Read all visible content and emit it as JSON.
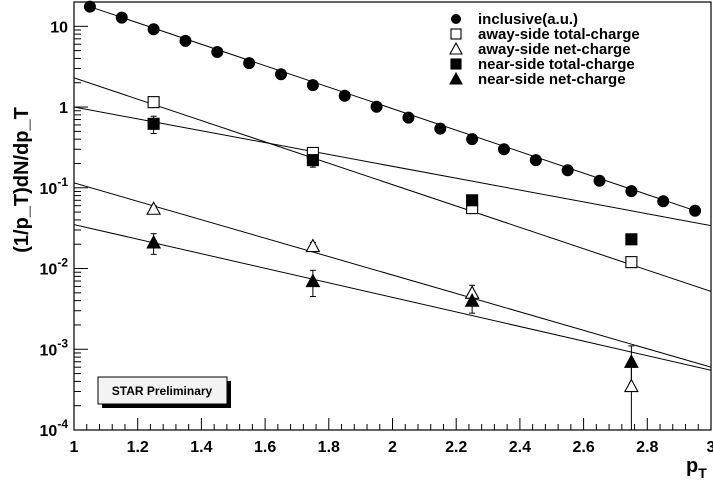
{
  "chart_data": {
    "type": "scatter",
    "xlabel": "p",
    "xlabel_sub": "T",
    "ylabel": "(1/p_T)dN/dp_T",
    "xlim": [
      1,
      3
    ],
    "ylim": [
      0.0001,
      20
    ],
    "y_scale": "log",
    "x_ticks": [
      1,
      1.2,
      1.4,
      1.6,
      1.8,
      2,
      2.2,
      2.4,
      2.6,
      2.8,
      3
    ],
    "x_tick_labels": [
      "1",
      "1.2",
      "1.4",
      "1.6",
      "1.8",
      "2",
      "2.2",
      "2.4",
      "2.6",
      "2.8",
      "3"
    ],
    "y_ticks": [
      0.0001,
      0.001,
      0.01,
      0.1,
      1,
      10
    ],
    "y_tick_labels": [
      {
        "base": "10",
        "exp": "-4"
      },
      {
        "base": "10",
        "exp": "-3"
      },
      {
        "base": "10",
        "exp": "-2"
      },
      {
        "base": "10",
        "exp": "-1"
      },
      {
        "base": "1",
        "exp": ""
      },
      {
        "base": "10",
        "exp": ""
      }
    ],
    "grid": false,
    "legend_position": "top-right",
    "annotation": "STAR Preliminary",
    "series": [
      {
        "name": "inclusive(a.u.)",
        "marker": "filled-circle",
        "x": [
          1.05,
          1.15,
          1.25,
          1.35,
          1.45,
          1.55,
          1.65,
          1.75,
          1.85,
          1.95,
          2.05,
          2.15,
          2.25,
          2.35,
          2.45,
          2.55,
          2.65,
          2.75,
          2.85,
          2.95
        ],
        "y": [
          17.5,
          12.8,
          9.2,
          6.6,
          4.8,
          3.5,
          2.55,
          1.87,
          1.38,
          1.01,
          0.74,
          0.54,
          0.4,
          0.3,
          0.22,
          0.165,
          0.122,
          0.091,
          0.068,
          0.052
        ],
        "fit": [
          [
            1.05,
            17.5
          ],
          [
            2.95,
            0.052
          ]
        ]
      },
      {
        "name": "away-side total-charge",
        "marker": "open-square",
        "x": [
          1.25,
          1.75,
          2.25,
          2.75
        ],
        "y": [
          1.15,
          0.27,
          0.056,
          0.012
        ],
        "err": [
          0.15,
          0.03,
          0.006,
          0.0015
        ],
        "fit": [
          [
            1.0,
            2.3
          ],
          [
            3.0,
            0.0052
          ]
        ]
      },
      {
        "name": "away-side net-charge",
        "marker": "open-triangle",
        "x": [
          1.25,
          1.75,
          2.25,
          2.75
        ],
        "y": [
          0.055,
          0.019,
          0.005,
          0.00035
        ],
        "err": [
          0.005,
          0.002,
          0.0012,
          0.00025
        ],
        "fit": [
          [
            1.0,
            0.115
          ],
          [
            3.0,
            0.0006
          ]
        ]
      },
      {
        "name": "near-side total-charge",
        "marker": "filled-square",
        "x": [
          1.25,
          1.75,
          2.25,
          2.75
        ],
        "y": [
          0.62,
          0.22,
          0.07,
          0.023
        ],
        "err": [
          0.15,
          0.04,
          0.01,
          0.003
        ],
        "fit": [
          [
            1.0,
            1.0
          ],
          [
            3.0,
            0.034
          ]
        ]
      },
      {
        "name": "near-side net-charge",
        "marker": "filled-triangle",
        "x": [
          1.25,
          1.75,
          2.25,
          2.75
        ],
        "y": [
          0.021,
          0.007,
          0.004,
          0.0007
        ],
        "err": [
          0.006,
          0.0025,
          0.0012,
          0.0004
        ],
        "fit": [
          [
            1.0,
            0.035
          ],
          [
            3.0,
            0.00055
          ]
        ]
      }
    ]
  }
}
